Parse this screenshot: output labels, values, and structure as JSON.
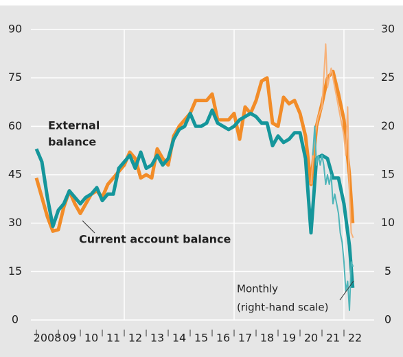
{
  "chart_data": {
    "type": "line",
    "annotations": [
      "External",
      "balance",
      "Current account balance",
      "Monthly",
      "(right-hand scale)"
    ],
    "xlim": [
      2007.75,
      2023.375
    ],
    "xticks": [
      {
        "value": 2008,
        "label": "2008"
      },
      {
        "value": 2009,
        "label": "09"
      },
      {
        "value": 2010,
        "label": "10"
      },
      {
        "value": 2011,
        "label": "11"
      },
      {
        "value": 2012,
        "label": "12"
      },
      {
        "value": 2013,
        "label": "13"
      },
      {
        "value": 2014,
        "label": "14"
      },
      {
        "value": 2015,
        "label": "15"
      },
      {
        "value": 2016,
        "label": "16"
      },
      {
        "value": 2017,
        "label": "17"
      },
      {
        "value": 2018,
        "label": "18"
      },
      {
        "value": 2019,
        "label": "19"
      },
      {
        "value": 2020,
        "label": "20"
      },
      {
        "value": 2021,
        "label": "21"
      },
      {
        "value": 2022,
        "label": "22"
      }
    ],
    "xgrid": [
      2012,
      2017,
      2022
    ],
    "ylim": [
      0,
      90
    ],
    "yticks": [
      0,
      15,
      30,
      45,
      60,
      75,
      90
    ],
    "y2lim": [
      0,
      30
    ],
    "y2ticks": [
      0,
      5,
      10,
      15,
      20,
      25,
      30
    ],
    "grid": true,
    "series": [
      {
        "name": "External balance",
        "color": "#f28c28",
        "width": 5,
        "x": [
          2008.0,
          2008.25,
          2008.5,
          2008.75,
          2009.0,
          2009.25,
          2009.5,
          2009.75,
          2010.0,
          2010.25,
          2010.5,
          2010.75,
          2011.0,
          2011.25,
          2011.5,
          2011.75,
          2012.0,
          2012.25,
          2012.5,
          2012.75,
          2013.0,
          2013.25,
          2013.5,
          2013.75,
          2014.0,
          2014.25,
          2014.5,
          2014.75,
          2015.0,
          2015.25,
          2015.5,
          2015.75,
          2016.0,
          2016.25,
          2016.5,
          2016.75,
          2017.0,
          2017.25,
          2017.5,
          2017.75,
          2018.0,
          2018.25,
          2018.5,
          2018.75,
          2019.0,
          2019.25,
          2019.5,
          2019.75,
          2020.0,
          2020.25,
          2020.5,
          2020.75,
          2021.0,
          2021.25,
          2021.5,
          2021.75,
          2022.0,
          2022.25,
          2022.4
        ],
        "values": [
          44,
          38,
          32,
          27.5,
          28,
          35,
          40,
          36,
          33,
          36,
          39,
          40,
          38,
          42,
          44,
          46,
          48,
          52,
          50,
          44,
          45,
          44,
          53,
          50,
          48,
          57,
          60,
          62,
          64,
          68,
          68,
          68,
          70,
          62,
          62,
          62,
          64,
          56,
          66,
          64,
          68,
          74,
          75,
          61,
          60,
          69,
          67,
          68,
          64,
          57,
          42,
          60,
          67,
          75,
          77,
          70,
          62,
          45,
          30
        ]
      },
      {
        "name": "Current account balance",
        "color": "#15969b",
        "width": 5,
        "x": [
          2008.0,
          2008.25,
          2008.5,
          2008.75,
          2009.0,
          2009.25,
          2009.5,
          2009.75,
          2010.0,
          2010.25,
          2010.5,
          2010.75,
          2011.0,
          2011.25,
          2011.5,
          2011.75,
          2012.0,
          2012.25,
          2012.5,
          2012.75,
          2013.0,
          2013.25,
          2013.5,
          2013.75,
          2014.0,
          2014.25,
          2014.5,
          2014.75,
          2015.0,
          2015.25,
          2015.5,
          2015.75,
          2016.0,
          2016.25,
          2016.5,
          2016.75,
          2017.0,
          2017.25,
          2017.5,
          2017.75,
          2018.0,
          2018.25,
          2018.5,
          2018.75,
          2019.0,
          2019.25,
          2019.5,
          2019.75,
          2020.0,
          2020.25,
          2020.5,
          2020.75,
          2021.0,
          2021.25,
          2021.5,
          2021.75,
          2022.0,
          2022.25,
          2022.4
        ],
        "values": [
          53,
          49,
          38,
          29,
          34,
          36,
          40,
          38,
          36,
          38,
          39,
          41,
          37,
          39,
          39,
          47,
          49,
          51,
          47,
          52,
          47,
          48,
          51,
          48,
          50,
          56,
          59,
          60,
          64,
          60,
          60,
          61,
          65,
          61,
          60,
          59,
          60,
          62,
          63,
          64,
          63,
          61,
          61,
          54,
          57,
          55,
          56,
          58,
          58,
          50,
          27,
          50,
          51,
          50,
          44,
          44,
          36,
          23,
          10
        ]
      },
      {
        "name": "External balance, monthly",
        "color": "#f7b27a",
        "width": 2,
        "axis": "y2",
        "x": [
          2020.5,
          2020.67,
          2020.83,
          2021.0,
          2021.08,
          2021.17,
          2021.25,
          2021.33,
          2021.42,
          2021.5,
          2021.58,
          2021.67,
          2021.75,
          2021.83,
          2021.92,
          2022.0,
          2022.08,
          2022.17,
          2022.25,
          2022.33,
          2022.42
        ],
        "values": [
          14,
          19,
          21,
          22,
          25,
          28.5,
          24,
          25,
          26,
          25,
          24,
          23,
          22,
          21,
          20,
          19,
          17,
          22,
          13,
          9,
          8.5
        ]
      },
      {
        "name": "Current account balance, monthly",
        "color": "#4fb5b9",
        "width": 2,
        "axis": "y2",
        "x": [
          2020.58,
          2020.67,
          2020.75,
          2020.83,
          2020.92,
          2021.0,
          2021.08,
          2021.17,
          2021.25,
          2021.33,
          2021.42,
          2021.5,
          2021.58,
          2021.67,
          2021.75,
          2021.83,
          2021.92,
          2022.0,
          2022.08,
          2022.17,
          2022.25,
          2022.33,
          2022.42
        ],
        "values": [
          17,
          20,
          16,
          17,
          16,
          17,
          16,
          14,
          15,
          14,
          15,
          12,
          13,
          12,
          11,
          9,
          8,
          6,
          3,
          4,
          1,
          6,
          5.5
        ]
      }
    ]
  }
}
